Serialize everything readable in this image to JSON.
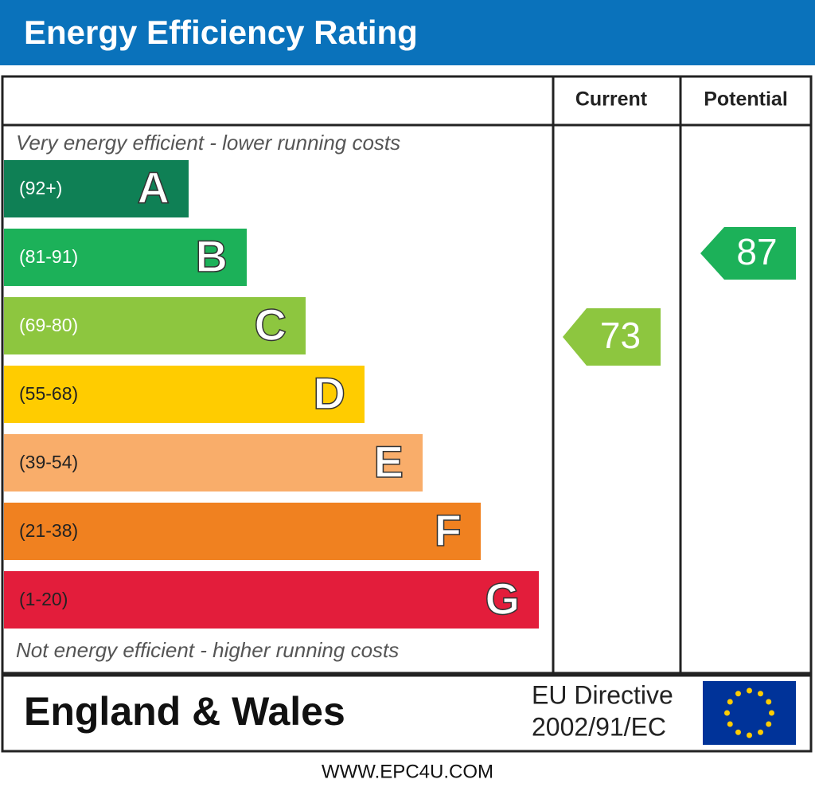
{
  "title": "Energy Efficiency Rating",
  "columns": {
    "current": "Current",
    "potential": "Potential"
  },
  "top_note": "Very energy efficient - lower running costs",
  "bottom_note": "Not energy efficient - higher running costs",
  "bands": [
    {
      "range": "(92+)",
      "letter": "A",
      "color": "#0f8055"
    },
    {
      "range": "(81-91)",
      "letter": "B",
      "color": "#1cb159"
    },
    {
      "range": "(69-80)",
      "letter": "C",
      "color": "#8dc63f"
    },
    {
      "range": "(55-68)",
      "letter": "D",
      "color": "#ffcc00"
    },
    {
      "range": "(39-54)",
      "letter": "E",
      "color": "#f9ad6a"
    },
    {
      "range": "(21-38)",
      "letter": "F",
      "color": "#f08120"
    },
    {
      "range": "(1-20)",
      "letter": "G",
      "color": "#e31d3b"
    }
  ],
  "current": {
    "value": 73,
    "color": "#8dc63f"
  },
  "potential": {
    "value": 87,
    "color": "#1cb159"
  },
  "footer": {
    "region": "England & Wales",
    "directive_line1": "EU Directive",
    "directive_line2": "2002/91/EC"
  },
  "website": "WWW.EPC4U.COM"
}
